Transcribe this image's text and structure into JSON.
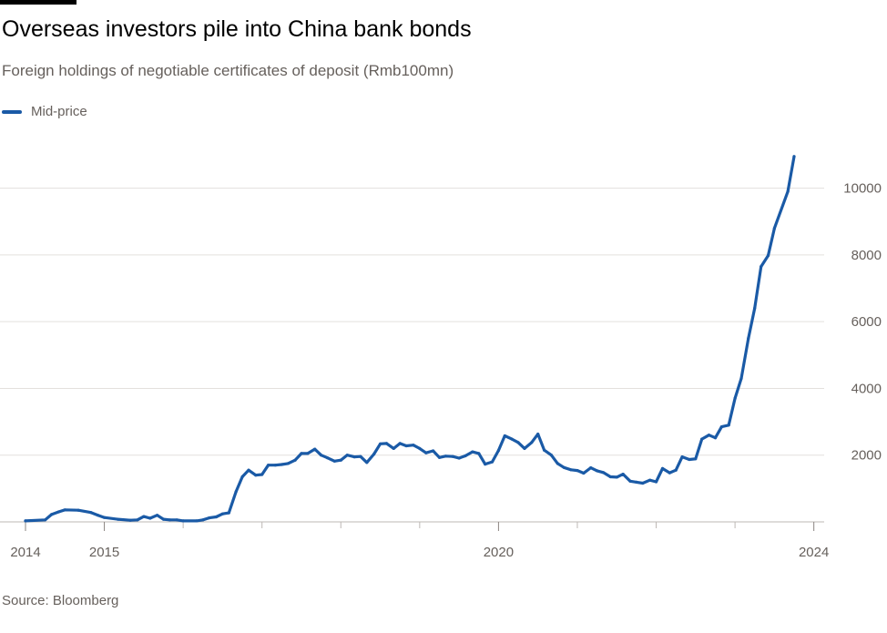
{
  "header": {
    "title": "Overseas investors pile into China bank bonds",
    "subtitle": "Foreign holdings of negotiable certificates of deposit (Rmb100mn)"
  },
  "legend": {
    "label": "Mid-price",
    "color": "#1a5aa6"
  },
  "footer": {
    "source": "Source: Bloomberg"
  },
  "chart_data": {
    "type": "line",
    "title": "Overseas investors pile into China bank bonds",
    "subtitle": "Foreign holdings of negotiable certificates of deposit (Rmb100mn)",
    "xlabel": "",
    "ylabel": "",
    "xlim": [
      2014.0,
      2024.05
    ],
    "ylim": [
      0,
      11000
    ],
    "x_ticks": [
      {
        "value": 2014,
        "label": "2014"
      },
      {
        "value": 2015,
        "label": "2015"
      },
      {
        "value": 2020,
        "label": "2020"
      },
      {
        "value": 2024,
        "label": "2024"
      }
    ],
    "y_ticks": [
      {
        "value": 2000,
        "label": "2000"
      },
      {
        "value": 4000,
        "label": "4000"
      },
      {
        "value": 6000,
        "label": "6000"
      },
      {
        "value": 8000,
        "label": "8000"
      },
      {
        "value": 10000,
        "label": "10000"
      }
    ],
    "grid": true,
    "legend_position": "top-left",
    "series": [
      {
        "name": "Mid-price",
        "color": "#1a5aa6",
        "points": [
          [
            2014.0,
            30
          ],
          [
            2014.25,
            60
          ],
          [
            2014.33,
            220
          ],
          [
            2014.42,
            300
          ],
          [
            2014.5,
            360
          ],
          [
            2014.67,
            350
          ],
          [
            2014.83,
            280
          ],
          [
            2014.92,
            200
          ],
          [
            2015.0,
            130
          ],
          [
            2015.17,
            80
          ],
          [
            2015.33,
            50
          ],
          [
            2015.42,
            60
          ],
          [
            2015.5,
            160
          ],
          [
            2015.58,
            110
          ],
          [
            2015.67,
            200
          ],
          [
            2015.75,
            80
          ],
          [
            2015.83,
            60
          ],
          [
            2015.92,
            60
          ],
          [
            2016.0,
            30
          ],
          [
            2016.17,
            30
          ],
          [
            2016.25,
            60
          ],
          [
            2016.33,
            120
          ],
          [
            2016.42,
            150
          ],
          [
            2016.5,
            240
          ],
          [
            2016.58,
            270
          ],
          [
            2016.67,
            900
          ],
          [
            2016.75,
            1350
          ],
          [
            2016.83,
            1550
          ],
          [
            2016.92,
            1400
          ],
          [
            2017.0,
            1420
          ],
          [
            2017.08,
            1700
          ],
          [
            2017.17,
            1700
          ],
          [
            2017.25,
            1720
          ],
          [
            2017.33,
            1750
          ],
          [
            2017.42,
            1850
          ],
          [
            2017.5,
            2050
          ],
          [
            2017.58,
            2050
          ],
          [
            2017.67,
            2180
          ],
          [
            2017.75,
            2000
          ],
          [
            2017.83,
            1920
          ],
          [
            2017.92,
            1820
          ],
          [
            2018.0,
            1850
          ],
          [
            2018.08,
            2000
          ],
          [
            2018.17,
            1950
          ],
          [
            2018.25,
            1960
          ],
          [
            2018.33,
            1780
          ],
          [
            2018.42,
            2030
          ],
          [
            2018.5,
            2340
          ],
          [
            2018.58,
            2350
          ],
          [
            2018.67,
            2200
          ],
          [
            2018.75,
            2350
          ],
          [
            2018.83,
            2280
          ],
          [
            2018.92,
            2300
          ],
          [
            2019.0,
            2200
          ],
          [
            2019.08,
            2070
          ],
          [
            2019.17,
            2130
          ],
          [
            2019.25,
            1930
          ],
          [
            2019.33,
            1970
          ],
          [
            2019.42,
            1960
          ],
          [
            2019.5,
            1910
          ],
          [
            2019.58,
            1980
          ],
          [
            2019.67,
            2100
          ],
          [
            2019.75,
            2050
          ],
          [
            2019.83,
            1730
          ],
          [
            2019.92,
            1800
          ],
          [
            2020.0,
            2140
          ],
          [
            2020.08,
            2580
          ],
          [
            2020.17,
            2480
          ],
          [
            2020.25,
            2380
          ],
          [
            2020.33,
            2200
          ],
          [
            2020.42,
            2380
          ],
          [
            2020.5,
            2630
          ],
          [
            2020.58,
            2150
          ],
          [
            2020.67,
            2000
          ],
          [
            2020.75,
            1750
          ],
          [
            2020.83,
            1630
          ],
          [
            2020.92,
            1560
          ],
          [
            2021.0,
            1540
          ],
          [
            2021.08,
            1460
          ],
          [
            2021.17,
            1620
          ],
          [
            2021.25,
            1530
          ],
          [
            2021.33,
            1480
          ],
          [
            2021.42,
            1350
          ],
          [
            2021.5,
            1340
          ],
          [
            2021.58,
            1430
          ],
          [
            2021.67,
            1220
          ],
          [
            2021.75,
            1190
          ],
          [
            2021.83,
            1160
          ],
          [
            2021.92,
            1250
          ],
          [
            2022.0,
            1200
          ],
          [
            2022.08,
            1600
          ],
          [
            2022.17,
            1470
          ],
          [
            2022.25,
            1550
          ],
          [
            2022.33,
            1950
          ],
          [
            2022.42,
            1870
          ],
          [
            2022.5,
            1890
          ],
          [
            2022.58,
            2480
          ],
          [
            2022.67,
            2600
          ],
          [
            2022.75,
            2520
          ],
          [
            2022.83,
            2850
          ],
          [
            2022.92,
            2900
          ],
          [
            2023.0,
            3700
          ],
          [
            2023.08,
            4300
          ],
          [
            2023.17,
            5500
          ],
          [
            2023.25,
            6400
          ],
          [
            2023.33,
            7650
          ],
          [
            2023.42,
            7980
          ],
          [
            2023.5,
            8800
          ],
          [
            2023.67,
            9900
          ],
          [
            2023.75,
            10950
          ]
        ]
      }
    ]
  }
}
